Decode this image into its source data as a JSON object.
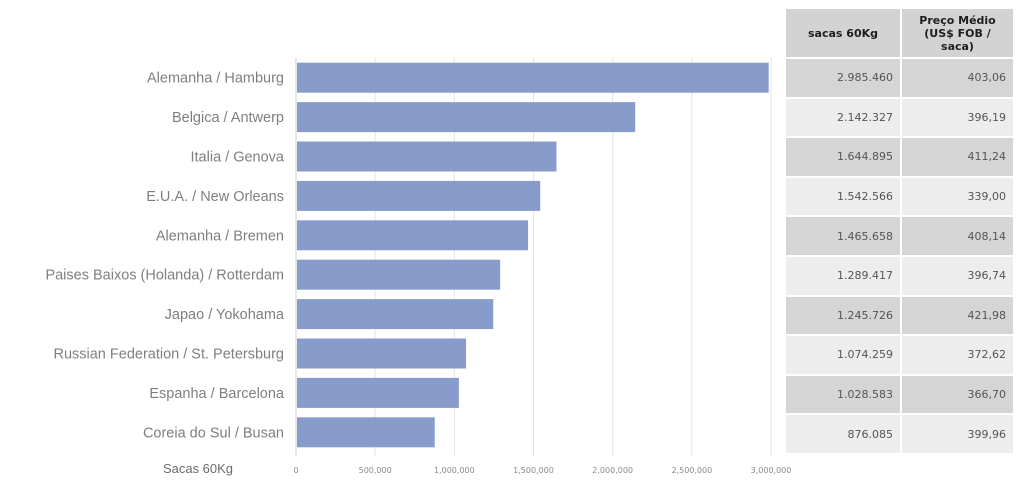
{
  "chart_data": {
    "type": "bar",
    "orientation": "horizontal",
    "categories": [
      "Alemanha / Hamburg",
      "Belgica / Antwerp",
      "Italia / Genova",
      "E.U.A. / New Orleans",
      "Alemanha / Bremen",
      "Paises Baixos (Holanda) / Rotterdam",
      "Japao / Yokohama",
      "Russian Federation / St. Petersburg",
      "Espanha / Barcelona",
      "Coreia do Sul  / Busan"
    ],
    "values": [
      2985460,
      2142327,
      1644895,
      1542566,
      1465658,
      1289417,
      1245726,
      1074259,
      1028583,
      876085
    ],
    "xlabel": "Sacas 60Kg",
    "xlim": [
      0,
      3000000
    ],
    "xticks": [
      0,
      500000,
      1000000,
      1500000,
      2000000,
      2500000,
      3000000
    ],
    "xtick_labels": [
      "0",
      "500,000",
      "1,000,000",
      "1,500,000",
      "2,000,000",
      "2,500,000",
      "3,000,000"
    ],
    "grid": true,
    "bar_color": "#879ccb"
  },
  "table": {
    "headers": [
      "sacas 60Kg",
      "Preço Médio\n(US$ FOB / saca)"
    ],
    "rows": [
      [
        "2.985.460",
        "403,06"
      ],
      [
        "2.142.327",
        "396,19"
      ],
      [
        "1.644.895",
        "411,24"
      ],
      [
        "1.542.566",
        "339,00"
      ],
      [
        "1.465.658",
        "408,14"
      ],
      [
        "1.289.417",
        "396,74"
      ],
      [
        "1.245.726",
        "421,98"
      ],
      [
        "1.074.259",
        "372,62"
      ],
      [
        "1.028.583",
        "366,70"
      ],
      [
        "876.085",
        "399,96"
      ]
    ]
  }
}
